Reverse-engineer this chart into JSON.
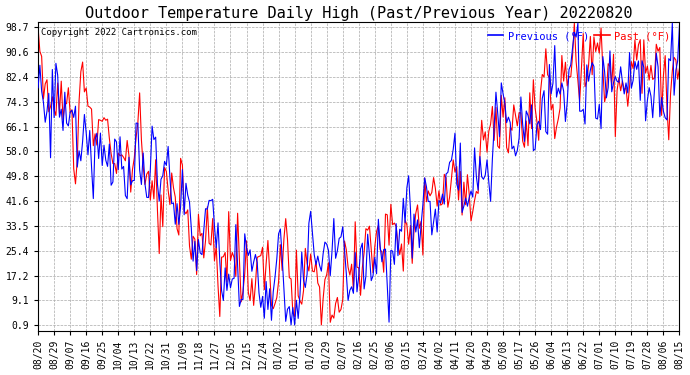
{
  "title": "Outdoor Temperature Daily High (Past/Previous Year) 20220820",
  "copyright": "Copyright 2022 Cartronics.com",
  "legend_previous": "Previous (°F)",
  "legend_past": "Past (°F)",
  "color_previous": "blue",
  "color_past": "red",
  "yticks": [
    0.9,
    9.1,
    17.2,
    25.4,
    33.5,
    41.6,
    49.8,
    58.0,
    66.1,
    74.3,
    82.4,
    90.6,
    98.7
  ],
  "xtick_labels": [
    "08/20",
    "08/29",
    "09/07",
    "09/16",
    "09/25",
    "10/04",
    "10/13",
    "10/22",
    "10/31",
    "11/09",
    "11/18",
    "11/27",
    "12/05",
    "12/15",
    "12/24",
    "01/02",
    "01/11",
    "01/20",
    "01/29",
    "02/07",
    "02/16",
    "02/25",
    "03/06",
    "03/15",
    "03/24",
    "04/02",
    "04/11",
    "04/20",
    "04/29",
    "05/08",
    "05/17",
    "05/26",
    "06/04",
    "06/13",
    "06/22",
    "07/01",
    "07/10",
    "07/19",
    "07/28",
    "08/06",
    "08/15"
  ],
  "ylim_min": -1.0,
  "ylim_max": 100.5,
  "bg_color": "#ffffff",
  "grid_color": "#aaaaaa",
  "title_fontsize": 11,
  "axis_fontsize": 7,
  "linewidth": 0.8
}
